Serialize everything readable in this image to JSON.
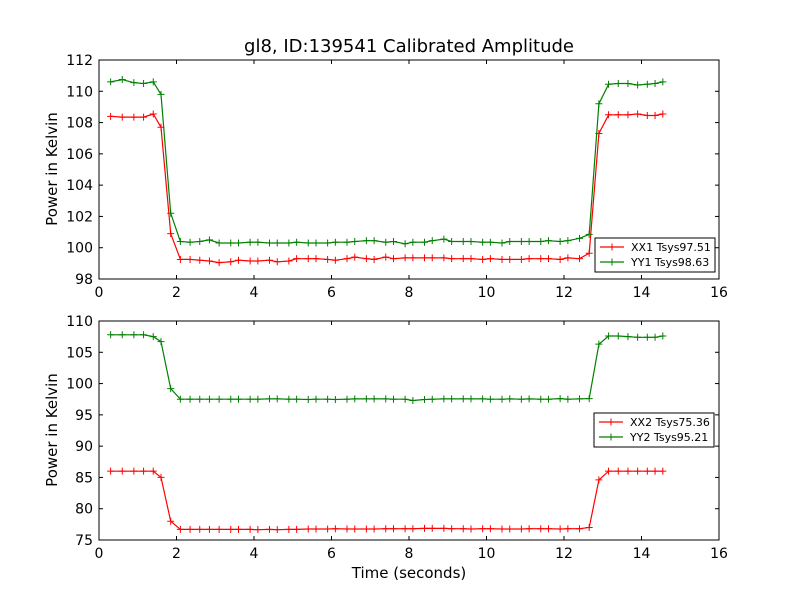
{
  "figure_title": "gl8, ID:139541 Calibrated Amplitude",
  "chart_data": [
    {
      "type": "line",
      "title": "gl8, ID:139541 Calibrated Amplitude",
      "xlabel": "",
      "ylabel": "Power in Kelvin",
      "xlim": [
        0,
        16
      ],
      "ylim": [
        98,
        112
      ],
      "xticks": [
        0,
        2,
        4,
        6,
        8,
        10,
        12,
        14,
        16
      ],
      "yticks": [
        98,
        100,
        102,
        104,
        106,
        108,
        110,
        112
      ],
      "grid": false,
      "legend_position": "lower-right",
      "x": [
        0.3,
        0.6,
        0.9,
        1.15,
        1.4,
        1.6,
        1.85,
        2.1,
        2.35,
        2.6,
        2.85,
        3.1,
        3.4,
        3.6,
        3.9,
        4.1,
        4.4,
        4.6,
        4.9,
        5.1,
        5.4,
        5.6,
        5.9,
        6.1,
        6.4,
        6.6,
        6.9,
        7.1,
        7.4,
        7.6,
        7.9,
        8.1,
        8.4,
        8.6,
        8.9,
        9.1,
        9.4,
        9.6,
        9.9,
        10.1,
        10.4,
        10.6,
        10.9,
        11.1,
        11.4,
        11.6,
        11.9,
        12.1,
        12.4,
        12.65,
        12.9,
        13.15,
        13.4,
        13.65,
        13.9,
        14.15,
        14.35,
        14.55
      ],
      "series": [
        {
          "name": "XX1 Tsys97.51",
          "color": "#ff0000",
          "values": [
            108.4,
            108.35,
            108.35,
            108.35,
            108.55,
            107.7,
            100.9,
            99.25,
            99.25,
            99.2,
            99.15,
            99.05,
            99.1,
            99.2,
            99.15,
            99.15,
            99.2,
            99.1,
            99.15,
            99.3,
            99.3,
            99.3,
            99.25,
            99.2,
            99.3,
            99.4,
            99.3,
            99.25,
            99.4,
            99.3,
            99.35,
            99.35,
            99.35,
            99.35,
            99.35,
            99.3,
            99.3,
            99.3,
            99.25,
            99.3,
            99.25,
            99.25,
            99.25,
            99.3,
            99.3,
            99.3,
            99.25,
            99.35,
            99.3,
            99.65,
            107.3,
            108.5,
            108.5,
            108.5,
            108.55,
            108.45,
            108.45,
            108.55
          ]
        },
        {
          "name": "YY1 Tsys98.63",
          "color": "#008000",
          "values": [
            110.6,
            110.75,
            110.55,
            110.5,
            110.6,
            109.8,
            102.2,
            100.4,
            100.35,
            100.4,
            100.5,
            100.3,
            100.3,
            100.3,
            100.35,
            100.35,
            100.3,
            100.3,
            100.3,
            100.35,
            100.3,
            100.3,
            100.3,
            100.35,
            100.35,
            100.4,
            100.45,
            100.45,
            100.35,
            100.4,
            100.25,
            100.35,
            100.35,
            100.45,
            100.55,
            100.4,
            100.4,
            100.4,
            100.35,
            100.35,
            100.3,
            100.4,
            100.4,
            100.4,
            100.4,
            100.45,
            100.4,
            100.45,
            100.6,
            100.85,
            109.2,
            110.45,
            110.5,
            110.5,
            110.4,
            110.45,
            110.5,
            110.6
          ]
        }
      ]
    },
    {
      "type": "line",
      "title": "",
      "xlabel": "Time (seconds)",
      "ylabel": "Power in Kelvin",
      "xlim": [
        0,
        16
      ],
      "ylim": [
        75,
        110
      ],
      "xticks": [
        0,
        2,
        4,
        6,
        8,
        10,
        12,
        14,
        16
      ],
      "yticks": [
        75,
        80,
        85,
        90,
        95,
        100,
        105,
        110
      ],
      "grid": false,
      "legend_position": "center-right",
      "x": [
        0.3,
        0.6,
        0.9,
        1.15,
        1.4,
        1.6,
        1.85,
        2.1,
        2.35,
        2.6,
        2.85,
        3.1,
        3.4,
        3.6,
        3.9,
        4.1,
        4.4,
        4.6,
        4.9,
        5.1,
        5.4,
        5.6,
        5.9,
        6.1,
        6.4,
        6.6,
        6.9,
        7.1,
        7.4,
        7.6,
        7.9,
        8.1,
        8.4,
        8.6,
        8.9,
        9.1,
        9.4,
        9.6,
        9.9,
        10.1,
        10.4,
        10.6,
        10.9,
        11.1,
        11.4,
        11.6,
        11.9,
        12.1,
        12.4,
        12.65,
        12.9,
        13.15,
        13.4,
        13.65,
        13.9,
        14.15,
        14.35,
        14.55
      ],
      "series": [
        {
          "name": "XX2 Tsys75.36",
          "color": "#ff0000",
          "values": [
            86.0,
            86.0,
            86.0,
            86.0,
            86.0,
            85.0,
            78.0,
            76.7,
            76.7,
            76.7,
            76.7,
            76.7,
            76.7,
            76.7,
            76.7,
            76.65,
            76.7,
            76.65,
            76.7,
            76.7,
            76.75,
            76.75,
            76.75,
            76.8,
            76.75,
            76.75,
            76.75,
            76.75,
            76.8,
            76.8,
            76.8,
            76.8,
            76.85,
            76.85,
            76.85,
            76.8,
            76.8,
            76.75,
            76.8,
            76.8,
            76.75,
            76.75,
            76.75,
            76.8,
            76.8,
            76.8,
            76.75,
            76.8,
            76.8,
            77.0,
            84.6,
            86.0,
            86.0,
            86.0,
            86.0,
            86.0,
            86.0,
            86.0
          ]
        },
        {
          "name": "YY2 Tsys95.21",
          "color": "#008000",
          "values": [
            107.8,
            107.8,
            107.8,
            107.8,
            107.5,
            106.7,
            99.2,
            97.5,
            97.5,
            97.5,
            97.5,
            97.5,
            97.5,
            97.5,
            97.5,
            97.5,
            97.55,
            97.55,
            97.5,
            97.5,
            97.45,
            97.5,
            97.5,
            97.45,
            97.5,
            97.55,
            97.55,
            97.55,
            97.55,
            97.5,
            97.5,
            97.3,
            97.45,
            97.5,
            97.55,
            97.55,
            97.55,
            97.55,
            97.55,
            97.5,
            97.5,
            97.55,
            97.5,
            97.55,
            97.5,
            97.5,
            97.6,
            97.5,
            97.55,
            97.6,
            106.3,
            107.6,
            107.6,
            107.5,
            107.4,
            107.4,
            107.4,
            107.6
          ]
        }
      ]
    }
  ]
}
